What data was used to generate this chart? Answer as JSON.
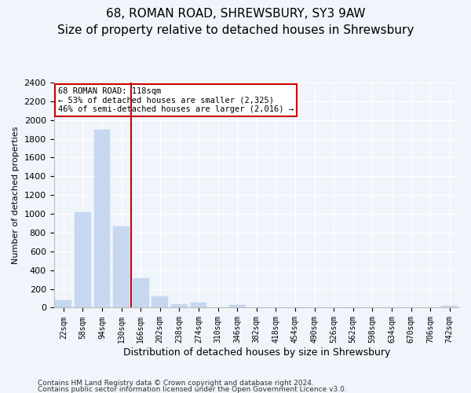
{
  "title": "68, ROMAN ROAD, SHREWSBURY, SY3 9AW",
  "subtitle": "Size of property relative to detached houses in Shrewsbury",
  "xlabel": "Distribution of detached houses by size in Shrewsbury",
  "ylabel": "Number of detached properties",
  "bar_labels": [
    "22sqm",
    "58sqm",
    "94sqm",
    "130sqm",
    "166sqm",
    "202sqm",
    "238sqm",
    "274sqm",
    "310sqm",
    "346sqm",
    "382sqm",
    "418sqm",
    "454sqm",
    "490sqm",
    "526sqm",
    "562sqm",
    "598sqm",
    "634sqm",
    "670sqm",
    "706sqm",
    "742sqm"
  ],
  "bar_values": [
    80,
    1020,
    1900,
    870,
    310,
    120,
    40,
    55,
    5,
    30,
    5,
    5,
    5,
    5,
    5,
    5,
    5,
    5,
    5,
    5,
    20
  ],
  "bar_color": "#c5d8f0",
  "bar_edgecolor": "#c5d8f0",
  "vline_x": 3.5,
  "vline_color": "#cc0000",
  "annotation_title": "68 ROMAN ROAD: 118sqm",
  "annotation_line1": "← 53% of detached houses are smaller (2,325)",
  "annotation_line2": "46% of semi-detached houses are larger (2,016) →",
  "annotation_box_facecolor": "#ffffff",
  "annotation_box_edgecolor": "#cc0000",
  "ylim": [
    0,
    2400
  ],
  "yticks": [
    0,
    200,
    400,
    600,
    800,
    1000,
    1200,
    1400,
    1600,
    1800,
    2000,
    2200,
    2400
  ],
  "footnote1": "Contains HM Land Registry data © Crown copyright and database right 2024.",
  "footnote2": "Contains public sector information licensed under the Open Government Licence v3.0.",
  "background_color": "#f0f4fb",
  "grid_color": "#ffffff",
  "title_fontsize": 11,
  "subtitle_fontsize": 9,
  "ylabel_fontsize": 8,
  "xlabel_fontsize": 9
}
